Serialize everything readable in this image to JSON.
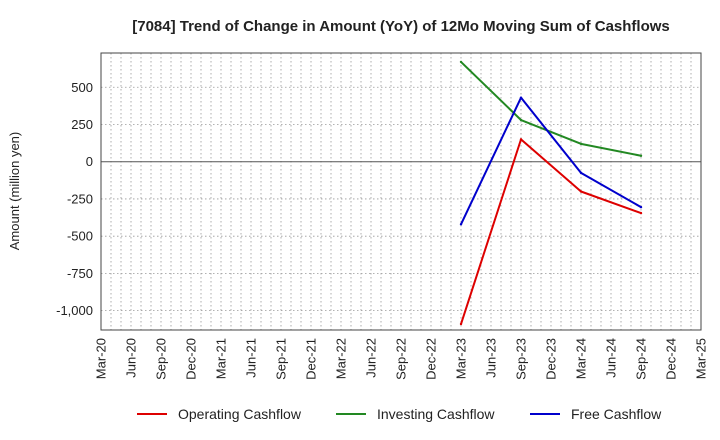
{
  "chart_data": {
    "type": "line",
    "title": "[7084]  Trend of Change in Amount (YoY) of 12Mo Moving Sum of Cashflows",
    "xlabel": "",
    "ylabel": "Amount (million yen)",
    "ylim": [
      -1130,
      730
    ],
    "y_ticks": [
      500,
      250,
      0,
      -250,
      -500,
      -750,
      -1000
    ],
    "y_tick_labels": [
      "500",
      "250",
      "0",
      "-250",
      "-500",
      "-750",
      "-1,000"
    ],
    "categories": [
      "Mar-20",
      "Jun-20",
      "Sep-20",
      "Dec-20",
      "Mar-21",
      "Jun-21",
      "Sep-21",
      "Dec-21",
      "Mar-22",
      "Jun-22",
      "Sep-22",
      "Dec-22",
      "Mar-23",
      "Jun-23",
      "Sep-23",
      "Dec-23",
      "Mar-24",
      "Jun-24",
      "Sep-24",
      "Dec-24",
      "Mar-25"
    ],
    "grid": true,
    "legend_position": "bottom",
    "series": [
      {
        "name": "Operating Cashflow",
        "color": "#dd0000",
        "values": [
          null,
          null,
          null,
          null,
          null,
          null,
          null,
          null,
          null,
          null,
          null,
          null,
          -1090,
          null,
          150,
          null,
          -200,
          null,
          -345,
          null,
          null
        ]
      },
      {
        "name": "Investing Cashflow",
        "color": "#228822",
        "values": [
          null,
          null,
          null,
          null,
          null,
          null,
          null,
          null,
          null,
          null,
          null,
          null,
          670,
          null,
          280,
          null,
          120,
          null,
          40,
          null,
          null
        ]
      },
      {
        "name": "Free Cashflow",
        "color": "#0000cc",
        "values": [
          null,
          null,
          null,
          null,
          null,
          null,
          null,
          null,
          null,
          null,
          null,
          null,
          -420,
          null,
          430,
          null,
          -75,
          null,
          -305,
          null,
          null
        ]
      }
    ]
  }
}
